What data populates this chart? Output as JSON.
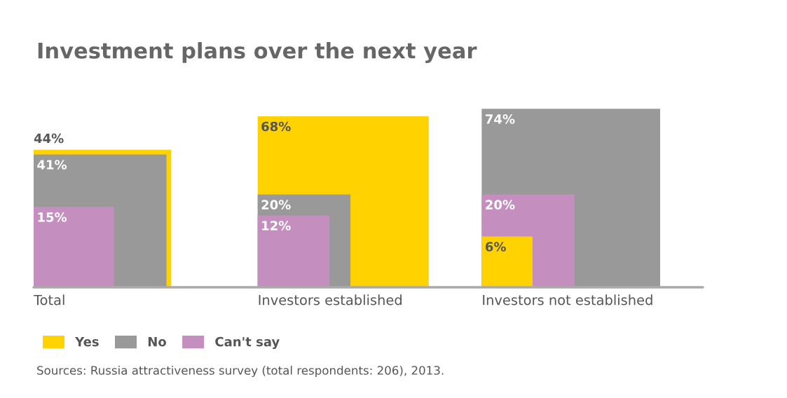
{
  "chart_data": {
    "type": "other",
    "title": "Investment plans over the next year",
    "categories": [
      "Total",
      "Investors established",
      "Investors not established"
    ],
    "series": [
      {
        "name": "Yes",
        "color": "#ffd200",
        "values": [
          44,
          68,
          6
        ],
        "value_labels": [
          "44%",
          "68%",
          "6%"
        ]
      },
      {
        "name": "No",
        "color": "#999999",
        "values": [
          41,
          20,
          74
        ],
        "value_labels": [
          "41%",
          "20%",
          "74%"
        ]
      },
      {
        "name": "Can't say",
        "color": "#c48fbf",
        "values": [
          15,
          12,
          20
        ],
        "value_labels": [
          "15%",
          "12%",
          "20%"
        ]
      }
    ],
    "legend": "bottom left",
    "annotations": [
      "Sources: Russia attractiveness survey (total respondents: 206), 2013."
    ]
  }
}
